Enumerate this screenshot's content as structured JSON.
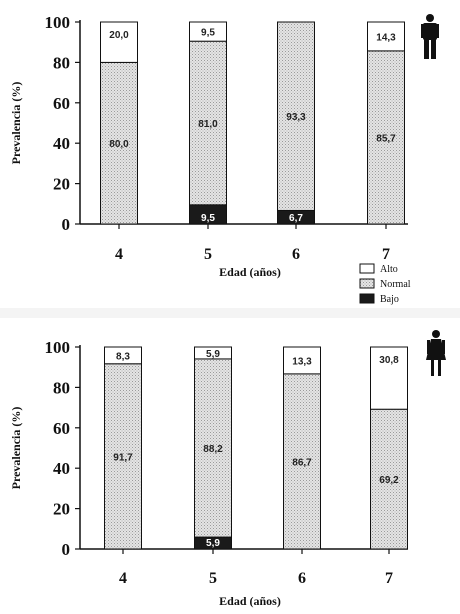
{
  "chart_data": [
    {
      "type": "bar",
      "stacked": true,
      "symbol": "male-figure-icon",
      "categories": [
        "4",
        "5",
        "6",
        "7"
      ],
      "xlabel": "Edad (años)",
      "ylabel": "Prevalencia (%)",
      "ylim": [
        0,
        100
      ],
      "yticks": [
        "0",
        "20",
        "40",
        "60",
        "80",
        "100"
      ],
      "series": [
        {
          "name": "Bajo",
          "values": [
            0,
            9.5,
            6.7,
            0
          ],
          "labels": [
            "",
            "9,5",
            "6,7",
            ""
          ]
        },
        {
          "name": "Normal",
          "values": [
            80.0,
            81.0,
            93.3,
            85.7
          ],
          "labels": [
            "80,0",
            "81,0",
            "93,3",
            "85,7"
          ]
        },
        {
          "name": "Alto",
          "values": [
            20.0,
            9.5,
            0,
            14.3
          ],
          "labels": [
            "20,0",
            "9,5",
            "",
            "14,3"
          ]
        }
      ],
      "legend": {
        "placement": "bottom-right",
        "order": [
          "Alto",
          "Normal",
          "Bajo"
        ]
      }
    },
    {
      "type": "bar",
      "stacked": true,
      "symbol": "female-figure-icon",
      "categories": [
        "4",
        "5",
        "6",
        "7"
      ],
      "xlabel": "Edad (años)",
      "ylabel": "Prevalencia (%)",
      "ylim": [
        0,
        100
      ],
      "yticks": [
        "0",
        "20",
        "40",
        "60",
        "80",
        "100"
      ],
      "series": [
        {
          "name": "Bajo",
          "values": [
            0,
            5.9,
            0,
            0
          ],
          "labels": [
            "",
            "5,9",
            "",
            ""
          ]
        },
        {
          "name": "Normal",
          "values": [
            91.7,
            88.2,
            86.7,
            69.2
          ],
          "labels": [
            "91,7",
            "88,2",
            "86,7",
            "69,2"
          ]
        },
        {
          "name": "Alto",
          "values": [
            8.3,
            5.9,
            13.3,
            30.8
          ],
          "labels": [
            "8,3",
            "5,9",
            "13,3",
            "30,8"
          ]
        }
      ]
    }
  ],
  "colors": {
    "Bajo": "#1a1a1a",
    "Normal": "#d9d9d9",
    "Alto": "#ffffff"
  }
}
